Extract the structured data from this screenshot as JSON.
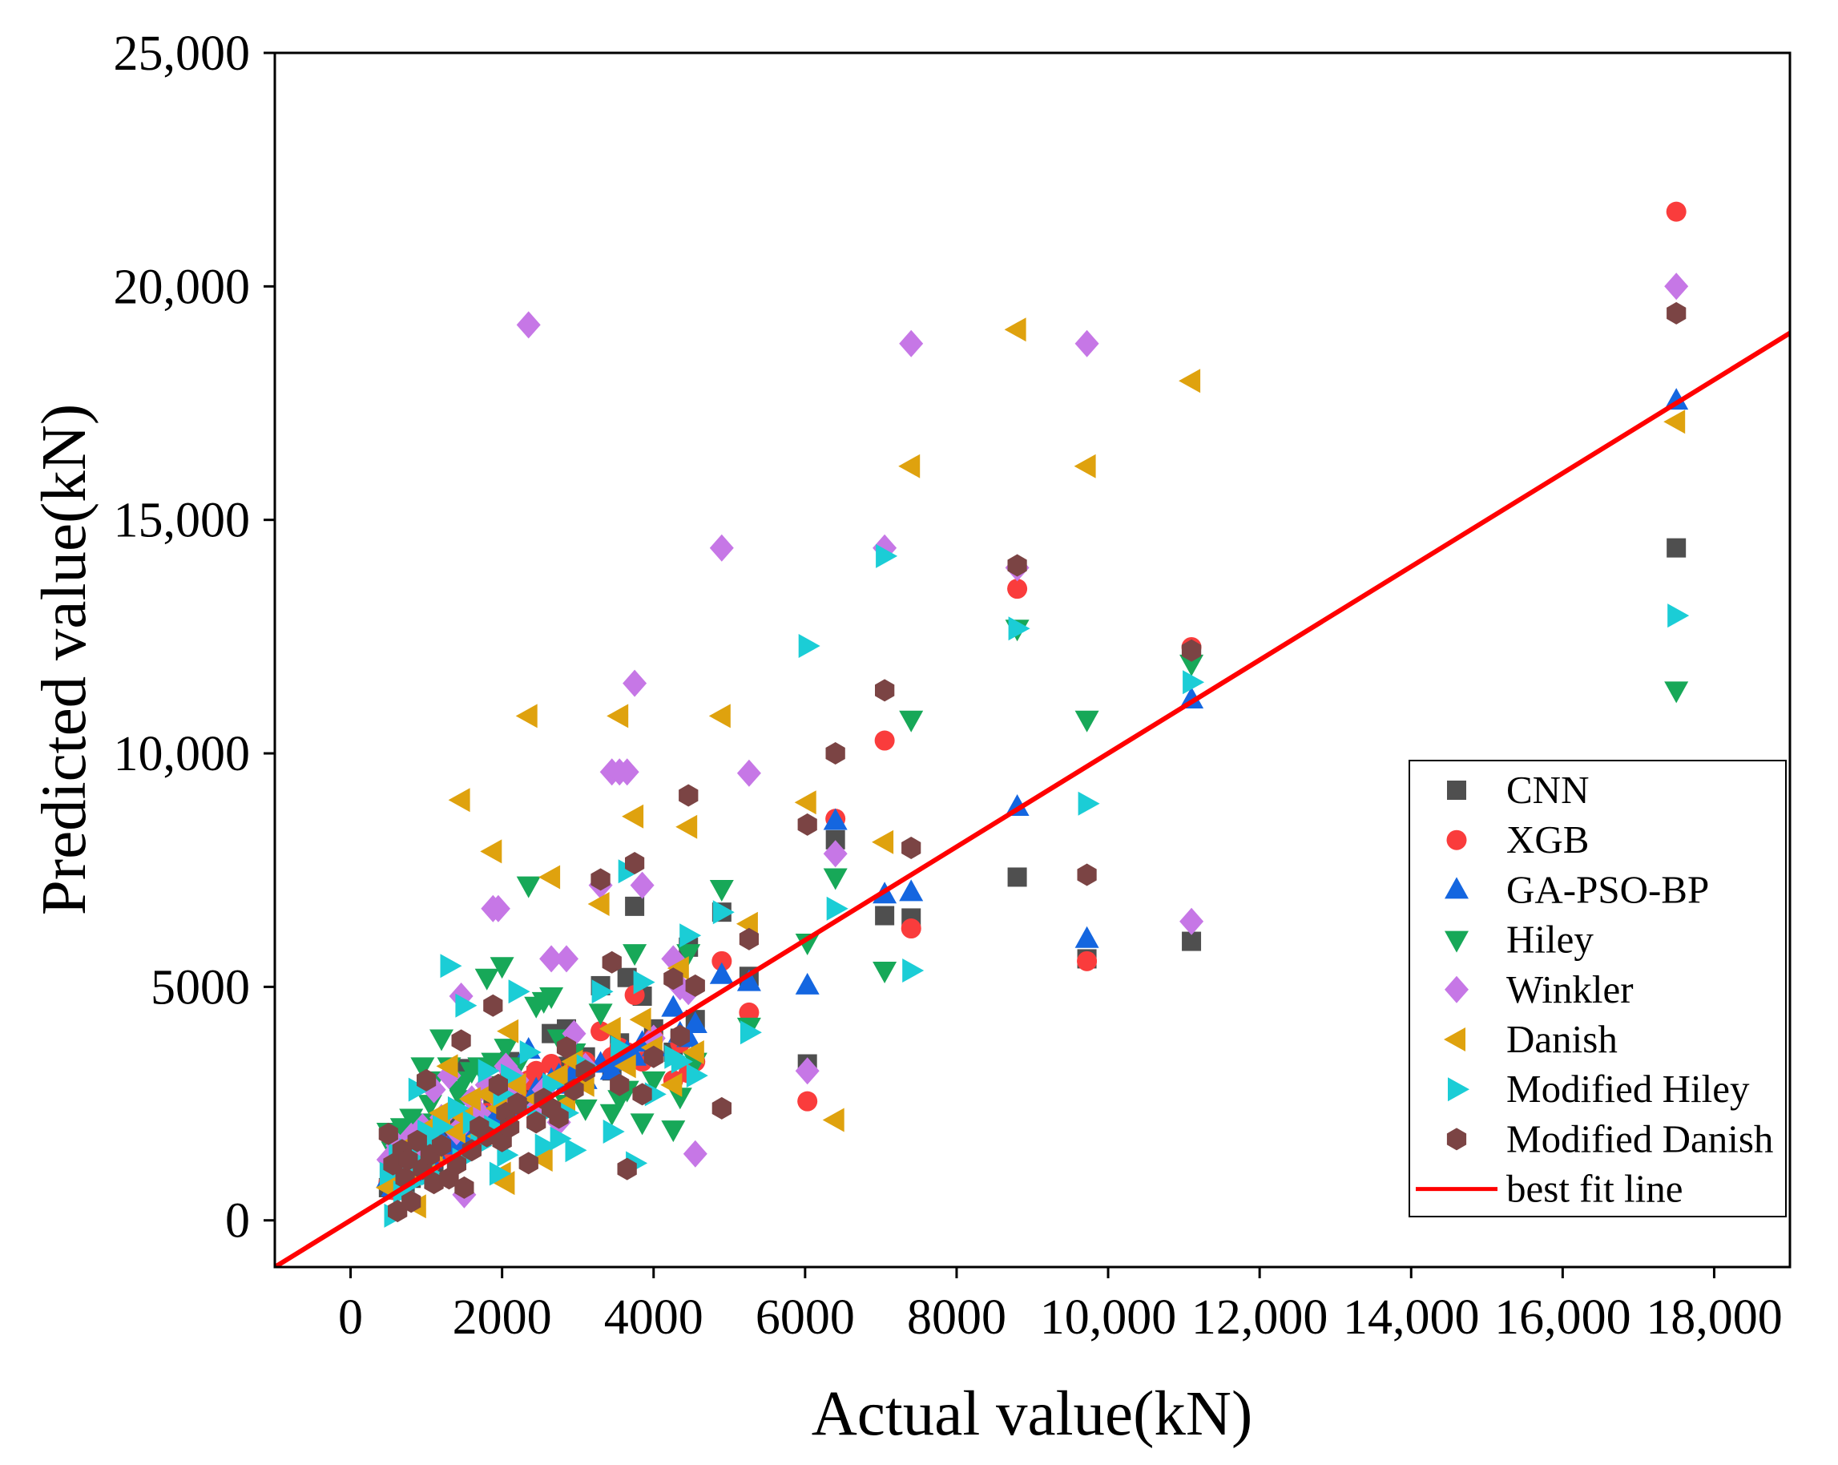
{
  "chart_data": {
    "type": "scatter",
    "xlabel": "Actual value(kN)",
    "ylabel": "Predicted value(kN)",
    "xlim": [
      -1000,
      19000
    ],
    "ylim": [
      -1000,
      25000
    ],
    "grid": false,
    "legend": {
      "position": "bottom-right"
    },
    "x_ticks": {
      "values": [
        0,
        2000,
        4000,
        6000,
        8000,
        10000,
        12000,
        14000,
        16000,
        18000
      ],
      "labels": [
        "0",
        "2000",
        "4000",
        "6000",
        "8000",
        "10,000",
        "12,000",
        "14,000",
        "16,000",
        "18,000"
      ]
    },
    "y_ticks": {
      "values": [
        0,
        5000,
        10000,
        15000,
        20000,
        25000
      ],
      "labels": [
        "0",
        "5000",
        "10,000",
        "15,000",
        "20,000",
        "25,000"
      ]
    },
    "x": [
      500,
      560,
      620,
      680,
      720,
      760,
      800,
      880,
      950,
      1000,
      1050,
      1100,
      1200,
      1300,
      1400,
      1460,
      1500,
      1600,
      1700,
      1800,
      1880,
      1950,
      2000,
      2050,
      2100,
      2200,
      2350,
      2450,
      2550,
      2650,
      2750,
      2850,
      2950,
      3100,
      3300,
      3450,
      3550,
      3650,
      3750,
      3850,
      4000,
      4260,
      4350,
      4460,
      4550,
      4900,
      5260,
      6030,
      6400,
      7050,
      7400,
      8800,
      9720,
      11100,
      17500
    ],
    "series": [
      {
        "name": "CNN",
        "color": "#4f4f4f",
        "marker": "square",
        "values": [
          700,
          900,
          650,
          1000,
          800,
          1100,
          900,
          1200,
          1400,
          1300,
          1600,
          1200,
          1800,
          1500,
          2100,
          1700,
          3250,
          1900,
          2200,
          2000,
          2600,
          2300,
          2500,
          2200,
          3400,
          2800,
          2600,
          3100,
          2900,
          4000,
          3300,
          4100,
          3000,
          3500,
          5025,
          3200,
          3800,
          5200,
          6725,
          4800,
          4100,
          3600,
          3900,
          5850,
          4300,
          6600,
          5225,
          3350,
          8150,
          6525,
          6475,
          7350,
          5600,
          5975,
          14400
        ]
      },
      {
        "name": "XGB",
        "color": "#fa3c3c",
        "marker": "circle",
        "values": [
          800,
          650,
          1000,
          750,
          1200,
          950,
          1100,
          1000,
          1300,
          1500,
          1200,
          1700,
          1400,
          1600,
          1900,
          1500,
          2000,
          2100,
          1800,
          2300,
          2100,
          2400,
          2600,
          2300,
          3150,
          2700,
          3000,
          3200,
          2800,
          3350,
          3100,
          3000,
          3300,
          3400,
          4050,
          3500,
          3700,
          3600,
          4825,
          3400,
          3900,
          3000,
          3800,
          3150,
          3400,
          5550,
          4450,
          2550,
          8600,
          10275,
          6250,
          13525,
          5550,
          12275,
          21600
        ]
      },
      {
        "name": "GA-PSO-BP",
        "color": "#1466e0",
        "marker": "triangle-up",
        "values": [
          900,
          700,
          1100,
          850,
          1000,
          1300,
          1000,
          1200,
          1100,
          1400,
          1300,
          1500,
          1700,
          1600,
          1800,
          1900,
          1700,
          2000,
          2100,
          2200,
          2000,
          2300,
          2200,
          2500,
          2400,
          2600,
          3650,
          2800,
          2900,
          3000,
          3100,
          2900,
          3200,
          3000,
          3350,
          3200,
          3400,
          3600,
          3500,
          3800,
          3700,
          4550,
          4000,
          3900,
          4200,
          5250,
          5100,
          5025,
          8550,
          6975,
          7025,
          8850,
          6025,
          11150,
          17550
        ]
      },
      {
        "name": "Hiley",
        "color": "#17a858",
        "marker": "triangle-down",
        "values": [
          1900,
          1500,
          1800,
          2000,
          1700,
          1900,
          2200,
          1900,
          3300,
          2100,
          2500,
          3000,
          3900,
          3300,
          2800,
          2600,
          3000,
          3200,
          3300,
          5200,
          3400,
          2900,
          5450,
          3700,
          2600,
          3300,
          7175,
          4600,
          4700,
          4800,
          3900,
          2500,
          3600,
          2400,
          4450,
          2300,
          2600,
          2800,
          5725,
          2100,
          3000,
          1950,
          2650,
          5725,
          3400,
          7100,
          4150,
          5950,
          7350,
          5350,
          10725,
          12675,
          10725,
          11925,
          11350
        ]
      },
      {
        "name": "Winkler",
        "color": "#c677e6",
        "marker": "diamond",
        "values": [
          1300,
          1000,
          1600,
          900,
          1500,
          1200,
          1800,
          1400,
          2000,
          1700,
          1500,
          2800,
          2200,
          3100,
          1900,
          4800,
          550,
          2600,
          2300,
          2900,
          6675,
          6675,
          2500,
          3300,
          2700,
          3000,
          19175,
          2400,
          2800,
          5600,
          2100,
          5600,
          4000,
          3300,
          7175,
          9600,
          9600,
          9600,
          11500,
          7175,
          3900,
          5600,
          5000,
          4900,
          1425,
          14400,
          9575,
          3200,
          7850,
          14400,
          18775,
          13975,
          18775,
          6400,
          20000
        ]
      },
      {
        "name": "Danish",
        "color": "#dfa20e",
        "marker": "triangle-left",
        "values": [
          700,
          1100,
          900,
          1400,
          1200,
          1600,
          1000,
          300,
          1800,
          1300,
          2000,
          1500,
          2300,
          3300,
          1900,
          9000,
          2200,
          2600,
          1800,
          2700,
          7900,
          2400,
          1000,
          800,
          4050,
          2900,
          10800,
          2600,
          1300,
          7350,
          3100,
          2500,
          3400,
          2900,
          6775,
          4100,
          10800,
          3300,
          8650,
          4300,
          3700,
          2900,
          5400,
          8425,
          3600,
          10800,
          6350,
          8950,
          2150,
          8100,
          16150,
          19075,
          16150,
          17975,
          17100
        ]
      },
      {
        "name": "Modified Hiley",
        "color": "#1bcdd6",
        "marker": "triangle-right",
        "values": [
          1000,
          100,
          1400,
          600,
          1100,
          1500,
          800,
          2800,
          1200,
          1900,
          1000,
          1700,
          2000,
          5450,
          2400,
          1300,
          4600,
          2100,
          1600,
          3200,
          2000,
          1000,
          2700,
          1400,
          3100,
          4900,
          3600,
          2200,
          1600,
          2900,
          1750,
          2300,
          1500,
          3300,
          4900,
          1900,
          3700,
          7475,
          1225,
          5100,
          2700,
          3500,
          3400,
          6100,
          3100,
          6600,
          4025,
          12300,
          6675,
          14225,
          5350,
          12675,
          8925,
          11525,
          12950
        ]
      },
      {
        "name": "Modified Danish",
        "color": "#7b4444",
        "marker": "hexagon",
        "values": [
          1850,
          1200,
          200,
          1500,
          900,
          1300,
          400,
          1700,
          1100,
          3000,
          1400,
          800,
          1600,
          900,
          1200,
          3850,
          700,
          1500,
          2000,
          1800,
          4600,
          2900,
          1700,
          2300,
          2000,
          2500,
          1225,
          2100,
          2600,
          2400,
          2200,
          3700,
          2800,
          3200,
          7300,
          5525,
          2900,
          1100,
          7650,
          2700,
          3500,
          5175,
          3950,
          9100,
          5025,
          2400,
          6025,
          8475,
          10000,
          11350,
          7975,
          14025,
          7400,
          12200,
          19425
        ]
      }
    ],
    "fit_line": {
      "name": "best fit line",
      "color": "#ff0000",
      "x": [
        -1000,
        19000
      ],
      "y": [
        -1000,
        19000
      ]
    }
  }
}
